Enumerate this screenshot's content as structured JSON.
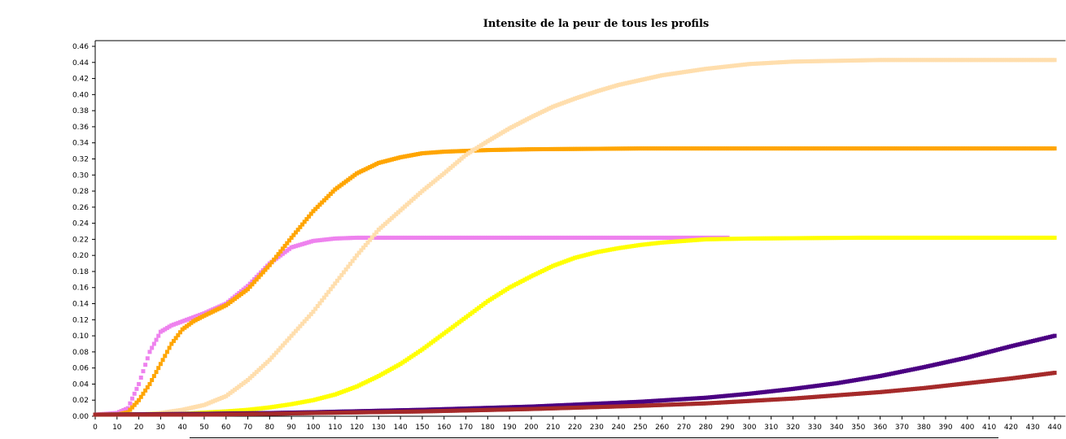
{
  "chart_data": {
    "type": "scatter",
    "title": "Intensite de la peur de tous les profils",
    "xlabel": "",
    "ylabel": "",
    "xlim": [
      0,
      445
    ],
    "ylim": [
      0,
      0.47
    ],
    "x_ticks": [
      0,
      10,
      20,
      30,
      40,
      50,
      60,
      70,
      80,
      90,
      100,
      110,
      120,
      130,
      140,
      150,
      160,
      170,
      180,
      190,
      200,
      210,
      220,
      230,
      240,
      250,
      260,
      270,
      280,
      290,
      300,
      310,
      320,
      330,
      340,
      350,
      360,
      370,
      380,
      390,
      400,
      410,
      420,
      430,
      440
    ],
    "y_ticks": [
      0.0,
      0.02,
      0.04,
      0.06,
      0.08,
      0.1,
      0.12,
      0.14,
      0.16,
      0.18,
      0.2,
      0.22,
      0.24,
      0.26,
      0.28,
      0.3,
      0.32,
      0.34,
      0.36,
      0.38,
      0.4,
      0.42,
      0.44,
      0.46
    ],
    "grid": true,
    "series": [
      {
        "color": "#ee82ee",
        "x": [
          0,
          10,
          15,
          20,
          25,
          30,
          35,
          40,
          50,
          60,
          70,
          80,
          90,
          100,
          110,
          120,
          130,
          150,
          200,
          250,
          290
        ],
        "y": [
          0.002,
          0.004,
          0.01,
          0.04,
          0.08,
          0.105,
          0.113,
          0.118,
          0.128,
          0.14,
          0.162,
          0.19,
          0.21,
          0.218,
          0.221,
          0.222,
          0.222,
          0.222,
          0.222,
          0.222,
          0.222
        ]
      },
      {
        "color": "#ffa500",
        "x": [
          0,
          10,
          15,
          20,
          25,
          30,
          35,
          40,
          45,
          50,
          60,
          70,
          80,
          90,
          100,
          110,
          120,
          130,
          140,
          150,
          160,
          180,
          200,
          250,
          300,
          350,
          400,
          440
        ],
        "y": [
          0.002,
          0.002,
          0.005,
          0.02,
          0.04,
          0.065,
          0.09,
          0.108,
          0.118,
          0.125,
          0.138,
          0.158,
          0.188,
          0.222,
          0.255,
          0.282,
          0.302,
          0.315,
          0.322,
          0.327,
          0.329,
          0.331,
          0.332,
          0.333,
          0.333,
          0.333,
          0.333,
          0.333
        ]
      },
      {
        "color": "#ffdead",
        "x": [
          0,
          20,
          30,
          40,
          50,
          60,
          70,
          80,
          90,
          100,
          110,
          120,
          130,
          140,
          150,
          160,
          170,
          180,
          190,
          200,
          210,
          220,
          230,
          240,
          250,
          260,
          270,
          280,
          290,
          300,
          320,
          340,
          360,
          400,
          440
        ],
        "y": [
          0.002,
          0.002,
          0.004,
          0.008,
          0.014,
          0.025,
          0.045,
          0.07,
          0.1,
          0.13,
          0.165,
          0.2,
          0.232,
          0.256,
          0.28,
          0.302,
          0.325,
          0.342,
          0.358,
          0.372,
          0.385,
          0.395,
          0.404,
          0.412,
          0.418,
          0.424,
          0.428,
          0.432,
          0.435,
          0.438,
          0.441,
          0.442,
          0.443,
          0.443,
          0.443
        ]
      },
      {
        "color": "#ffff00",
        "x": [
          0,
          40,
          60,
          70,
          80,
          90,
          100,
          110,
          120,
          130,
          140,
          150,
          160,
          170,
          180,
          190,
          200,
          210,
          220,
          230,
          240,
          250,
          260,
          270,
          280,
          300,
          350,
          400,
          440
        ],
        "y": [
          0.002,
          0.003,
          0.006,
          0.008,
          0.011,
          0.015,
          0.02,
          0.027,
          0.037,
          0.05,
          0.065,
          0.083,
          0.103,
          0.123,
          0.143,
          0.16,
          0.174,
          0.187,
          0.197,
          0.204,
          0.209,
          0.213,
          0.216,
          0.218,
          0.22,
          0.221,
          0.222,
          0.222,
          0.222
        ]
      },
      {
        "color": "#4b0082",
        "x": [
          0,
          50,
          80,
          100,
          150,
          200,
          250,
          280,
          300,
          320,
          340,
          360,
          380,
          400,
          420,
          440
        ],
        "y": [
          0.002,
          0.003,
          0.004,
          0.005,
          0.008,
          0.012,
          0.018,
          0.023,
          0.028,
          0.034,
          0.041,
          0.05,
          0.061,
          0.073,
          0.087,
          0.1
        ]
      },
      {
        "color": "#a52a2a",
        "x": [
          0,
          50,
          80,
          100,
          150,
          200,
          250,
          280,
          300,
          320,
          340,
          360,
          380,
          400,
          420,
          440
        ],
        "y": [
          0.002,
          0.002,
          0.003,
          0.004,
          0.006,
          0.009,
          0.013,
          0.016,
          0.019,
          0.022,
          0.026,
          0.03,
          0.035,
          0.041,
          0.047,
          0.054
        ]
      }
    ]
  }
}
